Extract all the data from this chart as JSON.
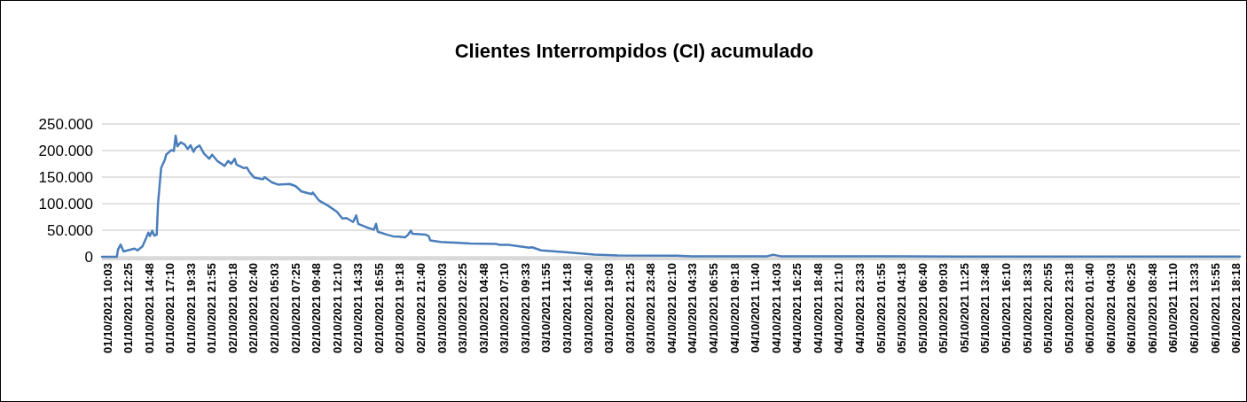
{
  "chart_data": {
    "type": "line",
    "title": "Clientes Interrompidos (CI) acumulado",
    "series": [
      {
        "color": "#4a7ebb",
        "x": [
          "2021-10-01T09:27",
          "2021-10-01T11:08",
          "2021-10-01T11:17",
          "2021-10-01T11:34",
          "2021-10-01T11:54",
          "2021-10-01T13:09",
          "2021-10-01T13:29",
          "2021-10-01T14:03",
          "2021-10-01T14:29",
          "2021-10-01T14:43",
          "2021-10-01T14:53",
          "2021-10-01T15:10",
          "2021-10-01T15:23",
          "2021-10-01T15:40",
          "2021-10-01T15:49",
          "2021-10-01T16:10",
          "2021-10-01T16:36",
          "2021-10-01T16:44",
          "2021-10-01T17:20",
          "2021-10-01T17:37",
          "2021-10-01T17:49",
          "2021-10-01T18:01",
          "2021-10-01T18:25",
          "2021-10-01T18:51",
          "2021-10-01T19:11",
          "2021-10-01T19:31",
          "2021-10-01T19:51",
          "2021-10-01T20:06",
          "2021-10-01T20:32",
          "2021-10-01T21:02",
          "2021-10-01T21:38",
          "2021-10-01T21:58",
          "2021-10-01T22:33",
          "2021-10-01T23:23",
          "2021-10-01T23:47",
          "2021-10-02T00:08",
          "2021-10-02T00:32",
          "2021-10-02T00:44",
          "2021-10-02T01:34",
          "2021-10-02T01:54",
          "2021-10-02T02:15",
          "2021-10-02T02:45",
          "2021-10-02T03:45",
          "2021-10-02T03:55",
          "2021-10-02T04:46",
          "2021-10-02T05:26",
          "2021-10-02T06:47",
          "2021-10-02T07:27",
          "2021-10-02T08:07",
          "2021-10-02T09:18",
          "2021-10-02T09:24",
          "2021-10-02T10:08",
          "2021-10-02T11:09",
          "2021-10-02T12:09",
          "2021-10-02T12:45",
          "2021-10-02T13:14",
          "2021-10-02T13:59",
          "2021-10-02T14:20",
          "2021-10-02T14:34",
          "2021-10-02T15:30",
          "2021-10-02T16:21",
          "2021-10-02T16:35",
          "2021-10-02T16:47",
          "2021-10-02T17:52",
          "2021-10-02T18:32",
          "2021-10-02T19:08",
          "2021-10-02T19:53",
          "2021-10-02T20:13",
          "2021-10-02T20:33",
          "2021-10-02T20:43",
          "2021-10-02T22:14",
          "2021-10-02T22:34",
          "2021-10-02T22:44",
          "2021-10-02T23:55",
          "2021-10-03T03:16",
          "2021-10-03T06:17",
          "2021-10-03T06:37",
          "2021-10-03T07:38",
          "2021-10-03T09:59",
          "2021-10-03T10:19",
          "2021-10-03T11:20",
          "2021-10-03T14:21",
          "2021-10-03T17:22",
          "2021-10-03T20:04",
          "2021-10-04T02:44",
          "2021-10-04T04:27",
          "2021-10-04T10:42",
          "2021-10-04T13:01",
          "2021-10-04T13:43",
          "2021-10-04T14:32",
          "2021-10-05T10:41",
          "2021-10-06T18:44"
        ],
        "values": [
          0,
          0,
          14000,
          23000,
          10000,
          15500,
          12000,
          19500,
          36000,
          45500,
          39000,
          49000,
          40000,
          41500,
          100000,
          167000,
          183000,
          192000,
          201000,
          199000,
          228000,
          208000,
          215500,
          211000,
          203000,
          210000,
          197500,
          205000,
          209500,
          194500,
          184500,
          192000,
          180500,
          171000,
          180500,
          175000,
          184500,
          173500,
          167000,
          168000,
          158500,
          149000,
          146000,
          150000,
          140000,
          136000,
          137000,
          133000,
          123000,
          118000,
          121000,
          105500,
          96000,
          84500,
          72000,
          73000,
          65500,
          78000,
          62000,
          55500,
          51000,
          62000,
          47000,
          41500,
          38500,
          38000,
          36500,
          41500,
          49000,
          43500,
          41500,
          39000,
          31000,
          28000,
          25000,
          24000,
          22500,
          22500,
          17000,
          18000,
          12000,
          8500,
          4000,
          2500,
          2000,
          1000,
          1000,
          1000,
          4000,
          1000,
          500,
          500
        ]
      }
    ],
    "xlim": [
      "2021-10-01T09:27",
      "2021-10-06T18:44"
    ],
    "xticks": [
      {
        "value": "2021-10-01T10:03",
        "label": "01/10/2021 10:03"
      },
      {
        "value": "2021-10-01T12:25",
        "label": "01/10/2021 12:25"
      },
      {
        "value": "2021-10-01T14:48",
        "label": "01/10/2021 14:48"
      },
      {
        "value": "2021-10-01T17:10",
        "label": "01/10/2021 17:10"
      },
      {
        "value": "2021-10-01T19:33",
        "label": "01/10/2021 19:33"
      },
      {
        "value": "2021-10-01T21:55",
        "label": "01/10/2021 21:55"
      },
      {
        "value": "2021-10-02T00:18",
        "label": "02/10/2021 00:18"
      },
      {
        "value": "2021-10-02T02:40",
        "label": "02/10/2021 02:40"
      },
      {
        "value": "2021-10-02T05:03",
        "label": "02/10/2021 05:03"
      },
      {
        "value": "2021-10-02T07:25",
        "label": "02/10/2021 07:25"
      },
      {
        "value": "2021-10-02T09:48",
        "label": "02/10/2021 09:48"
      },
      {
        "value": "2021-10-02T12:10",
        "label": "02/10/2021 12:10"
      },
      {
        "value": "2021-10-02T14:33",
        "label": "02/10/2021 14:33"
      },
      {
        "value": "2021-10-02T16:55",
        "label": "02/10/2021 16:55"
      },
      {
        "value": "2021-10-02T19:18",
        "label": "02/10/2021 19:18"
      },
      {
        "value": "2021-10-02T21:40",
        "label": "02/10/2021 21:40"
      },
      {
        "value": "2021-10-03T00:03",
        "label": "03/10/2021 00:03"
      },
      {
        "value": "2021-10-03T02:25",
        "label": "03/10/2021 02:25"
      },
      {
        "value": "2021-10-03T04:48",
        "label": "03/10/2021 04:48"
      },
      {
        "value": "2021-10-03T07:10",
        "label": "03/10/2021 07:10"
      },
      {
        "value": "2021-10-03T09:33",
        "label": "03/10/2021 09:33"
      },
      {
        "value": "2021-10-03T11:55",
        "label": "03/10/2021 11:55"
      },
      {
        "value": "2021-10-03T14:18",
        "label": "03/10/2021 14:18"
      },
      {
        "value": "2021-10-03T16:40",
        "label": "03/10/2021 16:40"
      },
      {
        "value": "2021-10-03T19:03",
        "label": "03/10/2021 19:03"
      },
      {
        "value": "2021-10-03T21:25",
        "label": "03/10/2021 21:25"
      },
      {
        "value": "2021-10-03T23:48",
        "label": "03/10/2021 23:48"
      },
      {
        "value": "2021-10-04T02:10",
        "label": "04/10/2021 02:10"
      },
      {
        "value": "2021-10-04T04:33",
        "label": "04/10/2021 04:33"
      },
      {
        "value": "2021-10-04T06:55",
        "label": "04/10/2021 06:55"
      },
      {
        "value": "2021-10-04T09:18",
        "label": "04/10/2021 09:18"
      },
      {
        "value": "2021-10-04T11:40",
        "label": "04/10/2021 11:40"
      },
      {
        "value": "2021-10-04T14:03",
        "label": "04/10/2021 14:03"
      },
      {
        "value": "2021-10-04T16:25",
        "label": "04/10/2021 16:25"
      },
      {
        "value": "2021-10-04T18:48",
        "label": "04/10/2021 18:48"
      },
      {
        "value": "2021-10-04T21:10",
        "label": "04/10/2021 21:10"
      },
      {
        "value": "2021-10-04T23:33",
        "label": "04/10/2021 23:33"
      },
      {
        "value": "2021-10-05T01:55",
        "label": "05/10/2021 01:55"
      },
      {
        "value": "2021-10-05T04:18",
        "label": "05/10/2021 04:18"
      },
      {
        "value": "2021-10-05T06:40",
        "label": "05/10/2021 06:40"
      },
      {
        "value": "2021-10-05T09:03",
        "label": "05/10/2021 09:03"
      },
      {
        "value": "2021-10-05T11:25",
        "label": "05/10/2021 11:25"
      },
      {
        "value": "2021-10-05T13:48",
        "label": "05/10/2021 13:48"
      },
      {
        "value": "2021-10-05T16:10",
        "label": "05/10/2021 16:10"
      },
      {
        "value": "2021-10-05T18:33",
        "label": "05/10/2021 18:33"
      },
      {
        "value": "2021-10-05T20:55",
        "label": "05/10/2021 20:55"
      },
      {
        "value": "2021-10-05T23:18",
        "label": "05/10/2021 23:18"
      },
      {
        "value": "2021-10-06T01:40",
        "label": "06/10/2021 01:40"
      },
      {
        "value": "2021-10-06T04:03",
        "label": "06/10/2021 04:03"
      },
      {
        "value": "2021-10-06T06:25",
        "label": "06/10/2021 06:25"
      },
      {
        "value": "2021-10-06T08:48",
        "label": "06/10/2021 08:48"
      },
      {
        "value": "2021-10-06T11:10",
        "label": "06/10/2021 11:10"
      },
      {
        "value": "2021-10-06T13:33",
        "label": "06/10/2021 13:33"
      },
      {
        "value": "2021-10-06T15:55",
        "label": "06/10/2021 15:55"
      },
      {
        "value": "2021-10-06T18:18",
        "label": "06/10/2021 18:18"
      }
    ],
    "ylim": [
      0,
      250000
    ],
    "yticks": [
      {
        "value": 0,
        "label": "0"
      },
      {
        "value": 50000,
        "label": "50.000"
      },
      {
        "value": 100000,
        "label": "100.000"
      },
      {
        "value": 150000,
        "label": "150.000"
      },
      {
        "value": 200000,
        "label": "200.000"
      },
      {
        "value": 250000,
        "label": "250.000"
      }
    ],
    "grid": "y",
    "marker": "none",
    "line_style": "solid"
  }
}
